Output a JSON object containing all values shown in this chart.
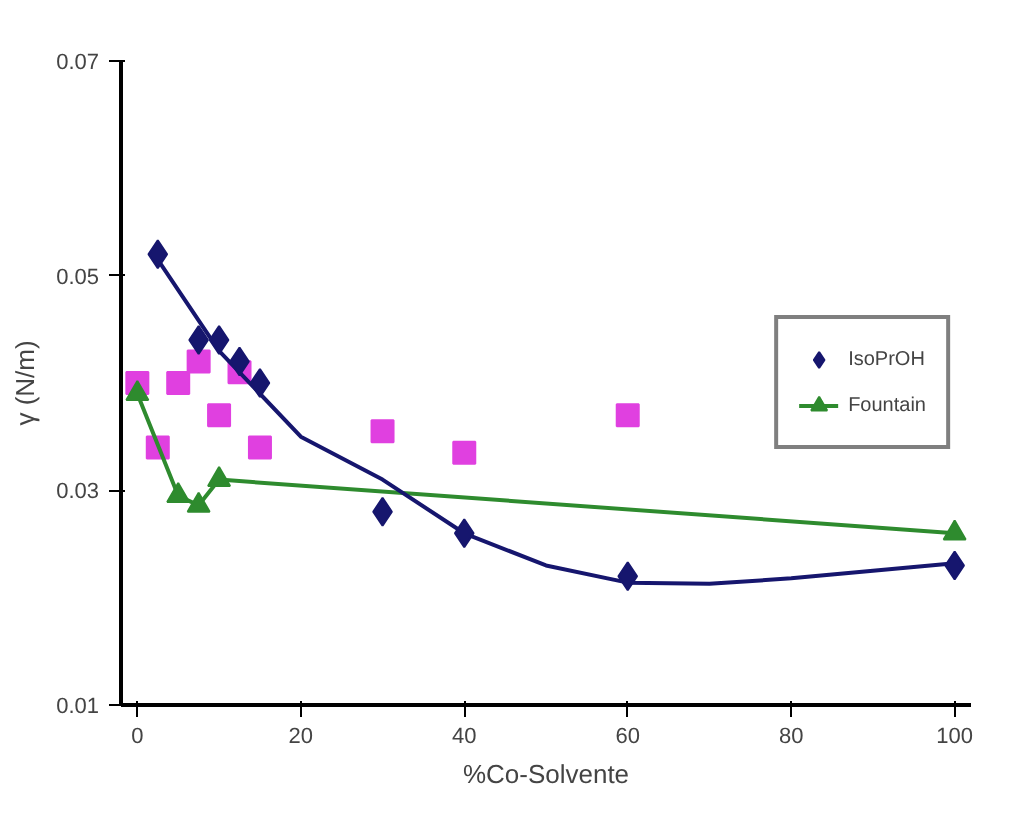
{
  "chart_data": {
    "type": "scatter",
    "xlabel": "%Co-Solvente",
    "ylabel": "γ (N/m)",
    "xlim": [
      -2,
      102
    ],
    "ylim": [
      0.01,
      0.07
    ],
    "xticks": [
      0,
      20,
      40,
      60,
      80,
      100
    ],
    "yticks": [
      0.01,
      0.03,
      0.05,
      0.07
    ],
    "grid": false,
    "legend": "right",
    "series": [
      {
        "marker": "square",
        "color": "#e040e0",
        "x": [
          0,
          2.5,
          5,
          7.5,
          10,
          12.5,
          15,
          30,
          40,
          60
        ],
        "values": [
          0.04,
          0.034,
          0.04,
          0.042,
          0.037,
          0.041,
          0.034,
          0.0355,
          0.0335,
          0.037
        ]
      },
      {
        "name": "Fountain",
        "type": "line",
        "marker": "triangle",
        "color": "#2e8b2e",
        "x": [
          0,
          5,
          7.5,
          10,
          100
        ],
        "values": [
          0.039,
          0.0295,
          0.0286,
          0.031,
          0.026
        ]
      },
      {
        "type": "line",
        "marker": "none",
        "color": "#16166e",
        "x": [
          2.5,
          10,
          20,
          30,
          40,
          50,
          60,
          70,
          80,
          90,
          100
        ],
        "values": [
          0.0515,
          0.043,
          0.035,
          0.031,
          0.026,
          0.023,
          0.0214,
          0.0213,
          0.0218,
          0.0225,
          0.0232
        ]
      },
      {
        "name": "IsoPrOH",
        "marker": "diamond",
        "color": "#16166e",
        "x": [
          2.5,
          7.5,
          10,
          12.5,
          15,
          30,
          40,
          60,
          100
        ],
        "values": [
          0.052,
          0.044,
          0.044,
          0.042,
          0.04,
          0.028,
          0.026,
          0.022,
          0.023
        ]
      }
    ]
  }
}
